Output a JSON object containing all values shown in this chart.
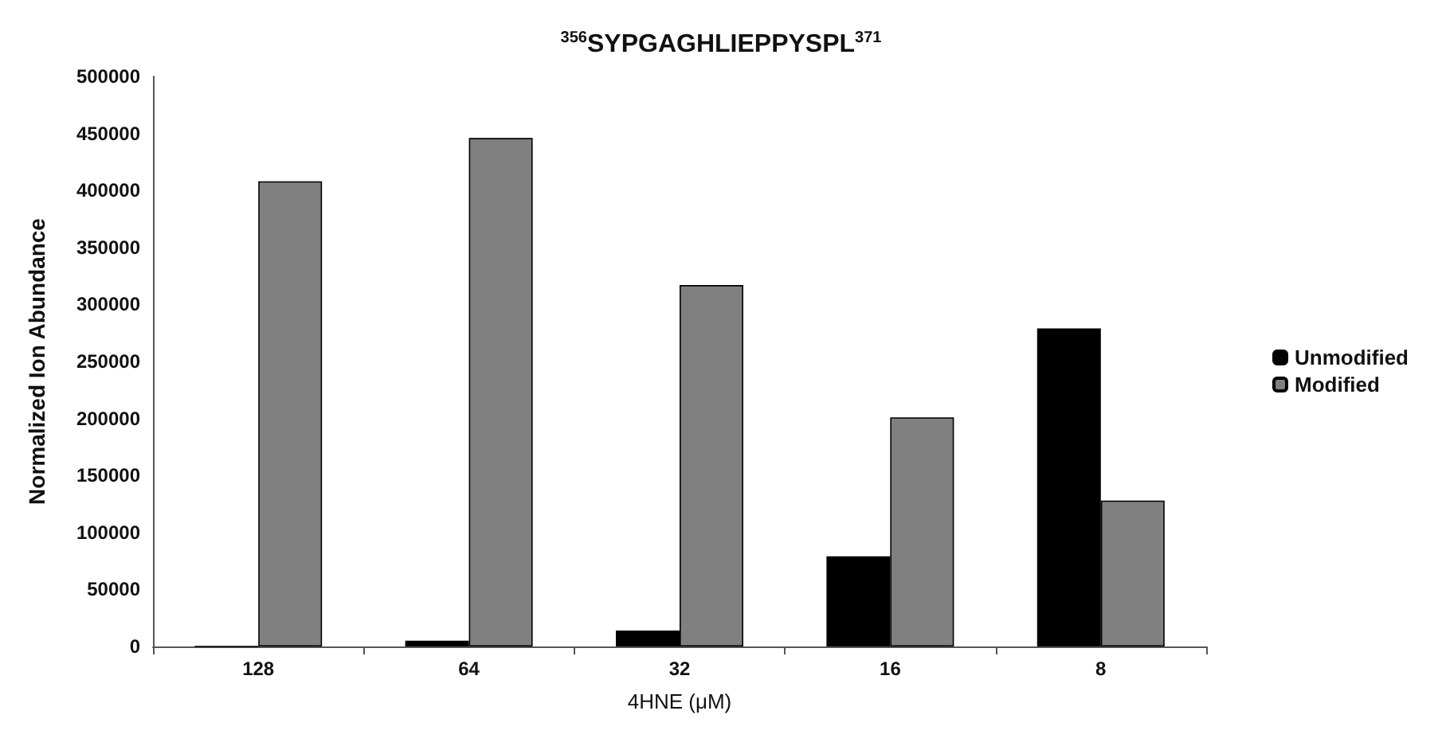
{
  "chart_data": {
    "type": "bar",
    "title": "$^{356}$SYPGAGHLIEPPYSPL$^{371}$",
    "xlabel": "4HNE (μM)",
    "ylabel": "Normalized Ion Abundance",
    "categories": [
      "128",
      "64",
      "32",
      "16",
      "8"
    ],
    "series": [
      {
        "name": "Unmodified",
        "color": "#000000",
        "values": [
          0,
          5000,
          14000,
          79000,
          279000
        ]
      },
      {
        "name": "Modified",
        "color": "#808080",
        "values": [
          408000,
          446000,
          317000,
          201000,
          128000
        ]
      }
    ],
    "ylim": [
      0,
      500000
    ],
    "yticks": [
      0,
      50000,
      100000,
      150000,
      200000,
      250000,
      300000,
      350000,
      400000,
      450000,
      500000
    ],
    "grid": false,
    "legend": "right"
  }
}
